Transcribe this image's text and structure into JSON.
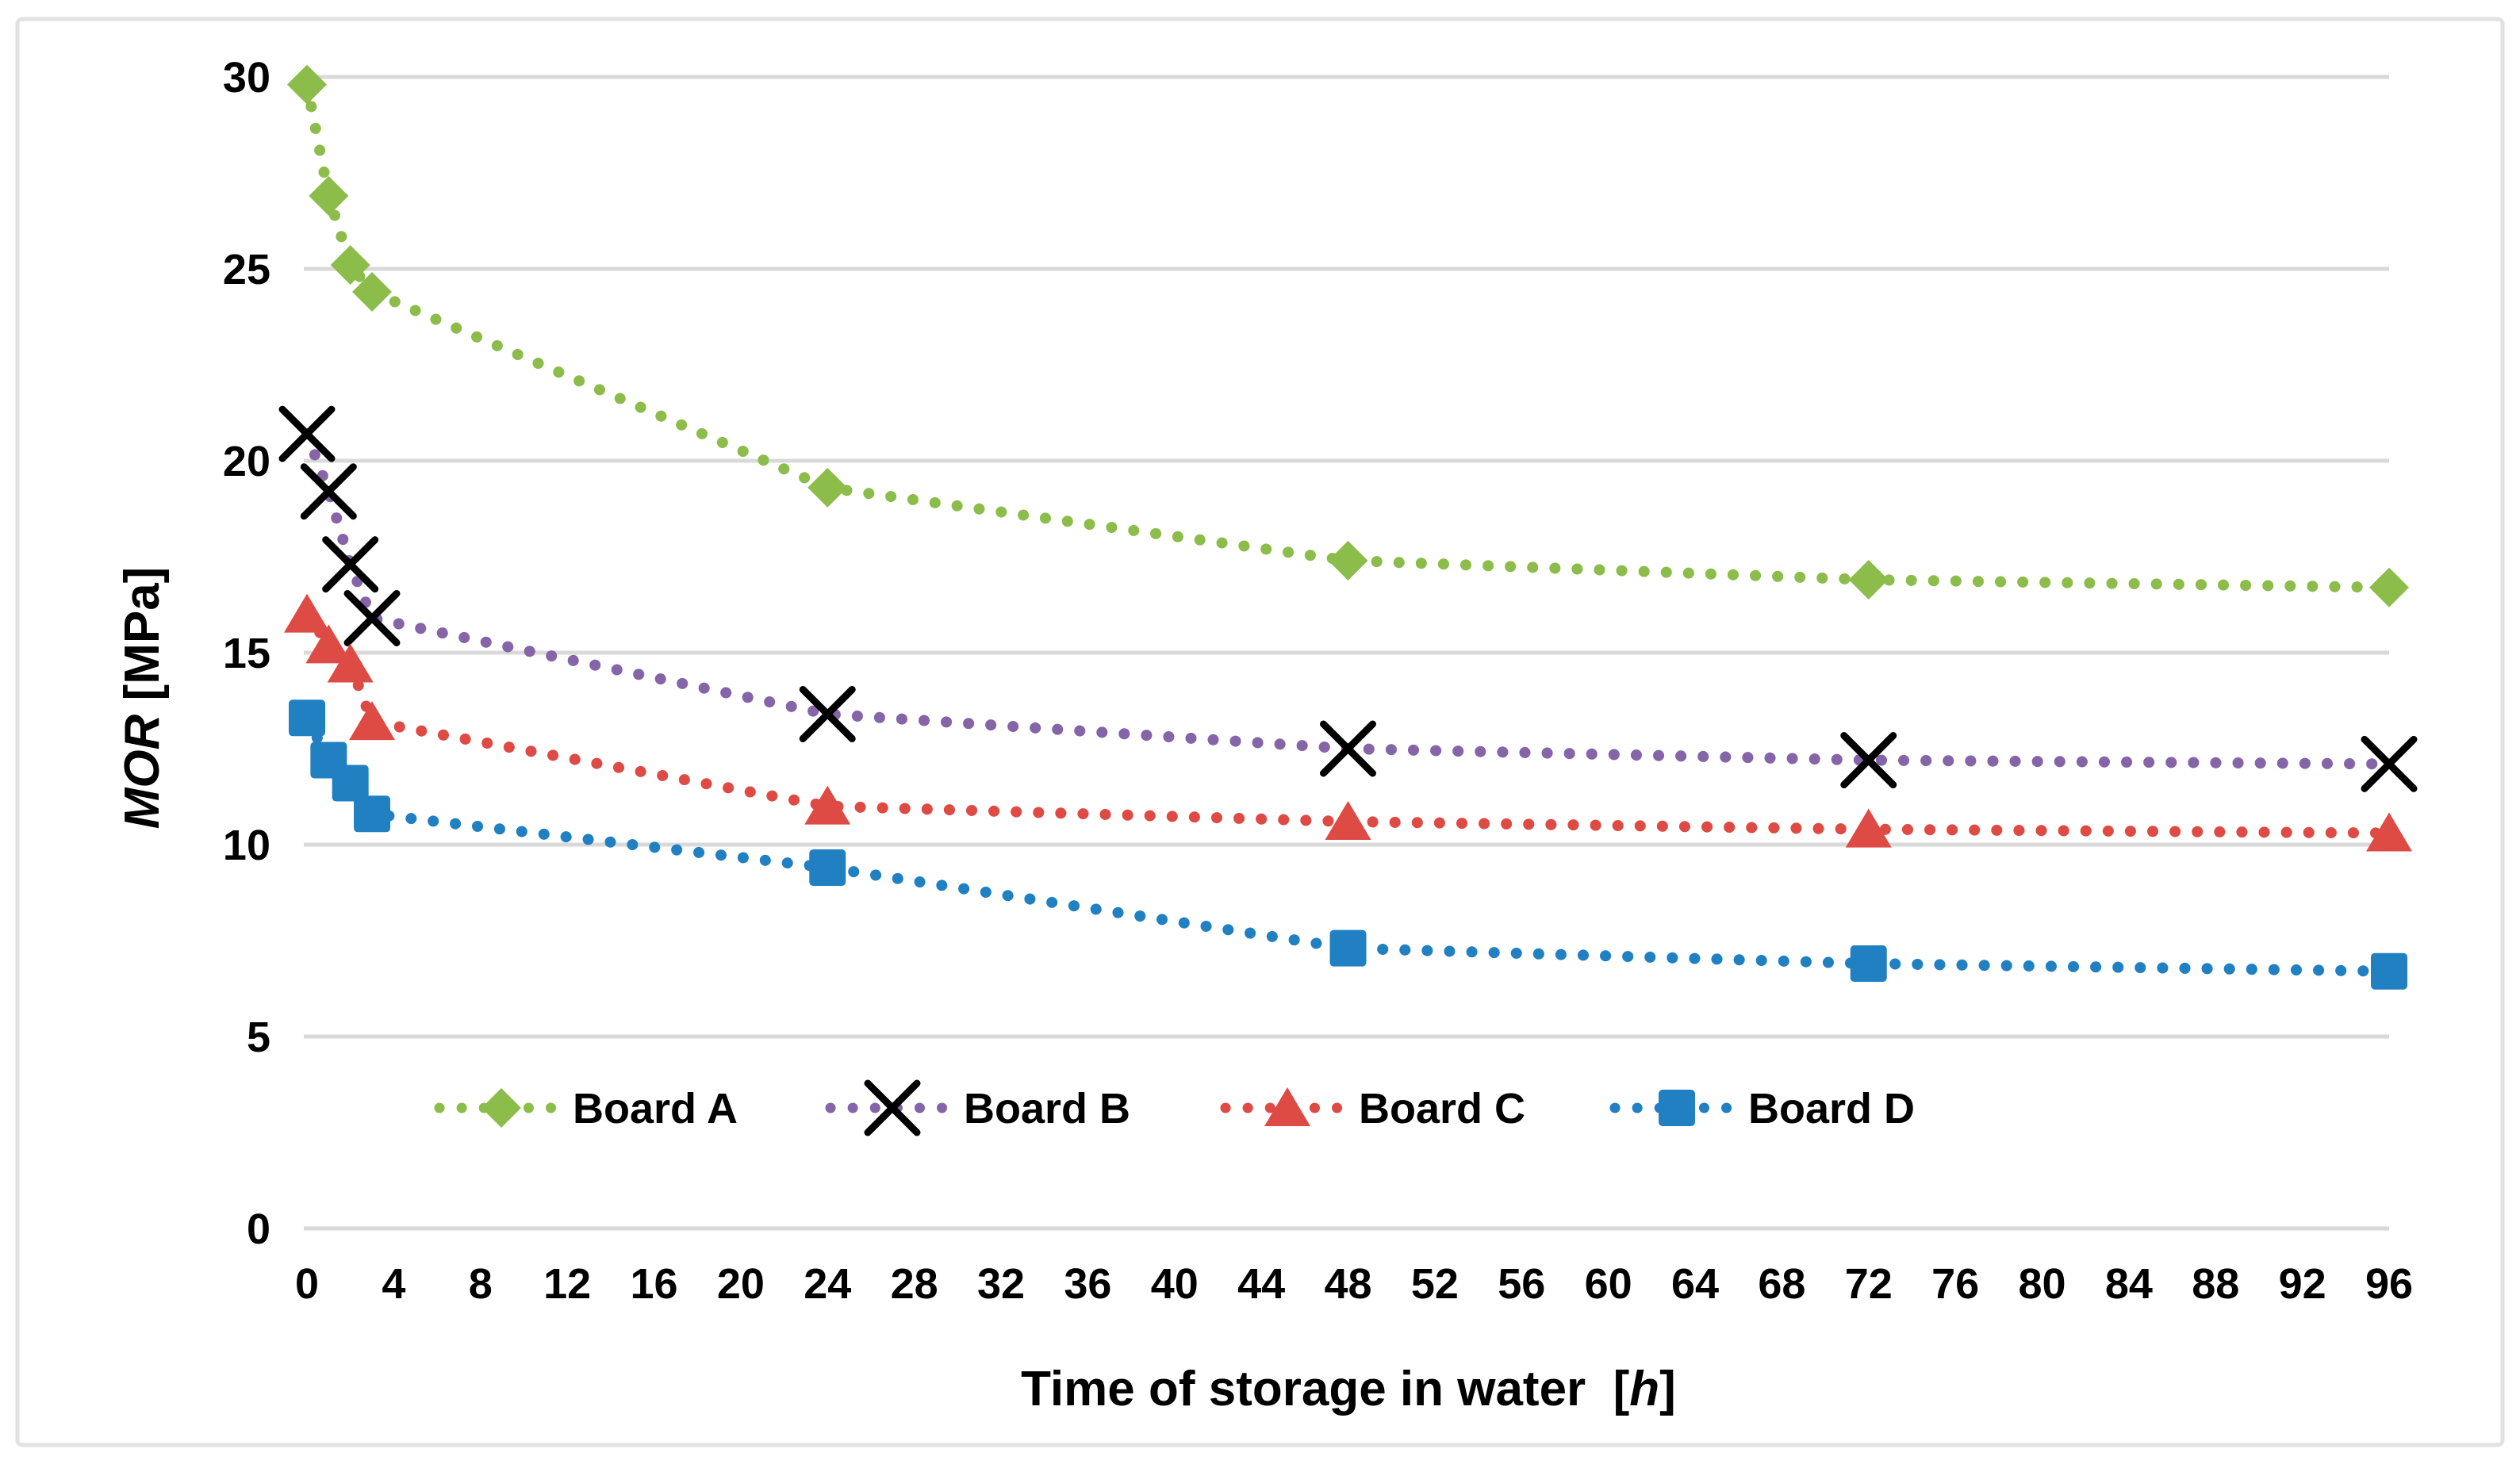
{
  "chart_data": {
    "type": "line",
    "title": "",
    "x": [
      0,
      1,
      2,
      3,
      24,
      48,
      72,
      96
    ],
    "series": [
      {
        "name": "Board A",
        "marker": "diamond",
        "line_color": "#8CBD4B",
        "marker_color": "#8CBD4B",
        "values": [
          29.8,
          26.9,
          25.1,
          24.4,
          19.3,
          17.4,
          16.9,
          16.7
        ]
      },
      {
        "name": "Board B",
        "marker": "x",
        "line_color": "#8565A8",
        "marker_color": "#000000",
        "values": [
          20.7,
          19.2,
          17.3,
          15.9,
          13.4,
          12.5,
          12.2,
          12.1
        ]
      },
      {
        "name": "Board C",
        "marker": "triangle",
        "line_color": "#DE4B44",
        "marker_color": "#DE4B44",
        "values": [
          16.0,
          15.2,
          14.7,
          13.2,
          11.0,
          10.6,
          10.4,
          10.3
        ]
      },
      {
        "name": "Board D",
        "marker": "square",
        "line_color": "#2080C1",
        "marker_color": "#2080C1",
        "values": [
          13.3,
          12.2,
          11.6,
          10.8,
          9.4,
          7.3,
          6.9,
          6.7
        ]
      }
    ],
    "x_ticks": [
      0,
      4,
      8,
      12,
      16,
      20,
      24,
      28,
      32,
      36,
      40,
      44,
      48,
      52,
      56,
      60,
      64,
      68,
      72,
      76,
      80,
      84,
      88,
      92,
      96
    ],
    "y_ticks": [
      0,
      5,
      10,
      15,
      20,
      25,
      30
    ],
    "xlim": [
      0,
      96
    ],
    "ylim": [
      0,
      30
    ],
    "grid": "horizontal",
    "line_style": "dotted",
    "legend_position": "bottom-inside",
    "xlabel": {
      "prefix": "Time of storage in water  [",
      "italic": "h",
      "suffix": "]"
    },
    "ylabel": {
      "italic": "MOR",
      "rest": " [MPa]"
    },
    "palette": {
      "gridline": "#D9D9D9",
      "chart_border": "#E2E2E2",
      "text": "#000000",
      "x_marker": "#000000"
    }
  }
}
